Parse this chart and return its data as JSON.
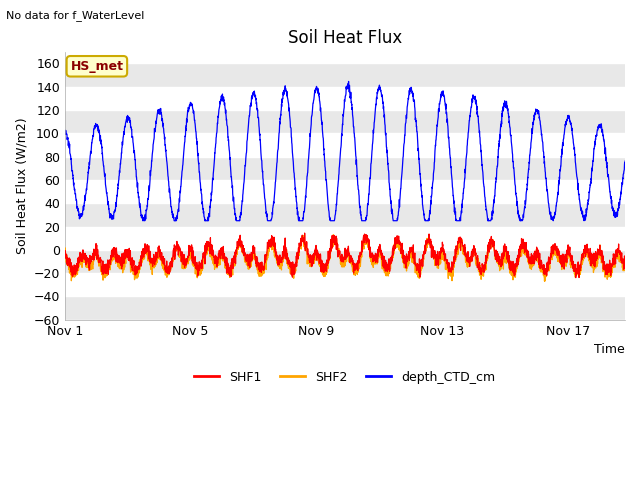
{
  "title": "Soil Heat Flux",
  "top_left_text": "No data for f_WaterLevel",
  "annotation_box_text": "HS_met",
  "xlabel": "Time",
  "ylabel": "Soil Heat Flux (W/m2)",
  "ylim": [
    -60,
    170
  ],
  "yticks": [
    -60,
    -40,
    -20,
    0,
    20,
    40,
    60,
    80,
    100,
    120,
    140,
    160
  ],
  "xtick_positions": [
    0,
    4,
    8,
    12,
    16
  ],
  "xtick_labels": [
    "Nov 1",
    "Nov 5",
    "Nov 9",
    "Nov 13",
    "Nov 17"
  ],
  "legend_entries": [
    "SHF1",
    "SHF2",
    "depth_CTD_cm"
  ],
  "colors": {
    "SHF1": "#FF0000",
    "SHF2": "#FFA500",
    "depth_CTD_cm": "#0000FF"
  },
  "fig_bg_color": "#FFFFFF",
  "plot_bg_color": "#FFFFFF",
  "n_days": 18,
  "samples_per_day": 144,
  "seed": 12345
}
